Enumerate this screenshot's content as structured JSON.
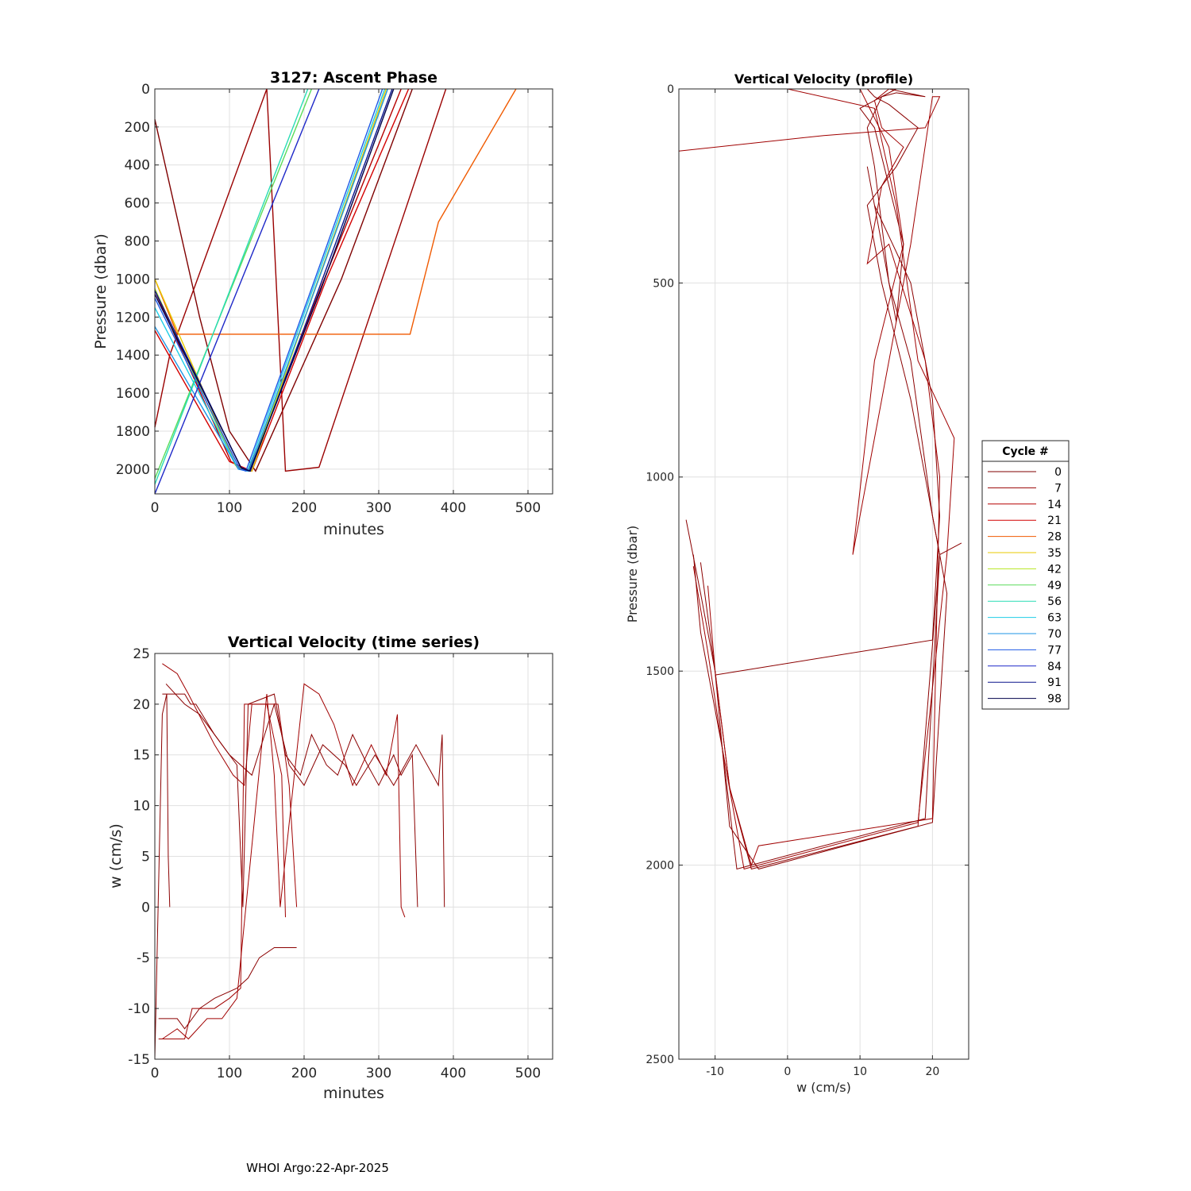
{
  "footer": "WHOI Argo:22-Apr-2025",
  "series_colors": [
    "#7f0000",
    "#9a0000",
    "#b50000",
    "#d30000",
    "#f05a00",
    "#e8c800",
    "#b4e61e",
    "#5adc5a",
    "#28dcb4",
    "#1ecde6",
    "#1e96e6",
    "#1e5ae6",
    "#1e28c8",
    "#0a148c",
    "#00004a"
  ],
  "chart_data": [
    {
      "type": "line",
      "title": "3127: Ascent Phase",
      "xlabel": "minutes",
      "ylabel": "Pressure (dbar)",
      "xlim": [
        0,
        533
      ],
      "ylim": [
        2130,
        0
      ],
      "y_reversed": true,
      "xticks": [
        0,
        100,
        200,
        300,
        400,
        500
      ],
      "yticks": [
        0,
        200,
        400,
        600,
        800,
        1000,
        1200,
        1400,
        1600,
        1800,
        2000
      ],
      "grid": true,
      "series": [
        {
          "cycle": 0,
          "x": [
            0,
            60,
            100,
            125,
            135,
            250,
            345
          ],
          "y": [
            160,
            1200,
            1800,
            1950,
            2010,
            1000,
            0
          ]
        },
        {
          "cycle": 7,
          "x": [
            0,
            20,
            150,
            175,
            220,
            390
          ],
          "y": [
            1780,
            1400,
            0,
            2010,
            1990,
            0
          ]
        },
        {
          "cycle": 14,
          "x": [
            0,
            102,
            125,
            225,
            330
          ],
          "y": [
            1060,
            1960,
            2010,
            1020,
            0
          ]
        },
        {
          "cycle": 21,
          "x": [
            0,
            100,
            130,
            230,
            340
          ],
          "y": [
            1270,
            1960,
            2010,
            1000,
            0
          ]
        },
        {
          "cycle": 28,
          "x": [
            0,
            30,
            342,
            380,
            484
          ],
          "y": [
            1000,
            1290,
            1290,
            700,
            0
          ]
        },
        {
          "cycle": 35,
          "x": [
            0,
            110,
            130,
            210,
            310
          ],
          "y": [
            1000,
            1990,
            2010,
            1100,
            0
          ]
        },
        {
          "cycle": 42,
          "x": [
            0,
            108,
            128,
            215,
            312
          ],
          "y": [
            1050,
            1980,
            2010,
            1050,
            0
          ]
        },
        {
          "cycle": 49,
          "x": [
            0,
            210
          ],
          "y": [
            2050,
            0
          ]
        },
        {
          "cycle": 56,
          "x": [
            0,
            205
          ],
          "y": [
            2080,
            0
          ]
        },
        {
          "cycle": 63,
          "x": [
            0,
            112,
            124,
            212,
            308
          ],
          "y": [
            1150,
            2000,
            2010,
            1050,
            0
          ]
        },
        {
          "cycle": 70,
          "x": [
            0,
            112,
            126,
            215,
            312
          ],
          "y": [
            1250,
            2000,
            2010,
            1050,
            0
          ]
        },
        {
          "cycle": 77,
          "x": [
            0,
            114,
            122,
            210,
            305
          ],
          "y": [
            1100,
            2000,
            2010,
            1050,
            0
          ]
        },
        {
          "cycle": 84,
          "x": [
            0,
            220
          ],
          "y": [
            2130,
            0
          ]
        },
        {
          "cycle": 91,
          "x": [
            0,
            115,
            128,
            220,
            318
          ],
          "y": [
            1060,
            1990,
            2010,
            1050,
            0
          ]
        },
        {
          "cycle": 98,
          "x": [
            0,
            116,
            127,
            222,
            320
          ],
          "y": [
            1080,
            1995,
            2010,
            1060,
            0
          ]
        }
      ]
    },
    {
      "type": "line",
      "title": "Vertical Velocity (time series)",
      "xlabel": "minutes",
      "ylabel": "w (cm/s)",
      "xlim": [
        0,
        533
      ],
      "ylim": [
        -15,
        25
      ],
      "xticks": [
        0,
        100,
        200,
        300,
        400,
        500
      ],
      "yticks": [
        -15,
        -10,
        -5,
        0,
        5,
        10,
        15,
        20,
        25
      ],
      "grid": true,
      "series": [
        {
          "x": [
            0,
            10,
            16,
            18,
            20
          ],
          "y": [
            -15,
            19,
            21,
            5,
            0
          ]
        },
        {
          "x": [
            10,
            30,
            45,
            80,
            105,
            120,
            130,
            165,
            180,
            190
          ],
          "y": [
            24,
            23,
            21,
            16,
            13,
            12,
            20,
            20,
            12,
            0
          ]
        },
        {
          "x": [
            10,
            40,
            48,
            55,
            80,
            110,
            118,
            125,
            160,
            175,
            195,
            210,
            230,
            245,
            265,
            285,
            300,
            320,
            330,
            345,
            352
          ],
          "y": [
            21,
            21,
            20,
            20,
            17,
            14,
            0,
            20,
            21,
            15,
            13,
            17,
            14,
            13,
            17,
            14,
            12,
            15,
            13,
            15,
            0
          ]
        },
        {
          "x": [
            5,
            40,
            50,
            80,
            100,
            115,
            120,
            150,
            170,
            175
          ],
          "y": [
            -13,
            -13,
            -10,
            -10,
            -9,
            -8,
            20,
            20,
            13,
            -1
          ]
        },
        {
          "x": [
            5,
            30,
            40,
            60,
            80,
            110,
            125,
            140,
            160,
            175,
            190
          ],
          "y": [
            -11,
            -11,
            -12,
            -10,
            -9,
            -8,
            -7,
            -5,
            -4,
            -4,
            -4
          ]
        },
        {
          "x": [
            10,
            30,
            45,
            70,
            90,
            110,
            150,
            160,
            168,
            200,
            220,
            240,
            265,
            290,
            310,
            325,
            330,
            335
          ],
          "y": [
            -13,
            -12,
            -13,
            -11,
            -11,
            -9,
            21,
            13,
            0,
            22,
            21,
            18,
            12,
            16,
            13,
            19,
            0,
            -1
          ]
        },
        {
          "x": [
            15,
            40,
            60,
            80,
            100,
            130,
            160,
            180,
            200,
            225,
            255,
            270,
            295,
            320,
            350,
            380,
            385,
            388
          ],
          "y": [
            22,
            20,
            19,
            17,
            15,
            13,
            20,
            14,
            12,
            16,
            14,
            12,
            15,
            12,
            16,
            12,
            17,
            0
          ]
        }
      ]
    },
    {
      "type": "line",
      "title": "Vertical Velocity (profile)",
      "xlabel": "w (cm/s)",
      "ylabel": "Pressure (dbar)",
      "xlim": [
        -15,
        25
      ],
      "ylim": [
        2500,
        0
      ],
      "y_reversed": true,
      "xticks": [
        -10,
        0,
        10,
        20
      ],
      "yticks": [
        0,
        500,
        1000,
        1500,
        2000,
        2500
      ],
      "grid": true,
      "legend": {
        "title": "Cycle #",
        "placement": "right",
        "entries": [
          "0",
          "7",
          "14",
          "21",
          "28",
          "35",
          "42",
          "49",
          "56",
          "63",
          "70",
          "77",
          "84",
          "91",
          "98"
        ]
      },
      "series": [
        {
          "x": [
            -14,
            -12,
            -10,
            -8,
            -5,
            18,
            21,
            24
          ],
          "y": [
            1110,
            1300,
            1500,
            1800,
            2010,
            1900,
            1200,
            1170
          ]
        },
        {
          "x": [
            -13,
            -11,
            -9,
            -6,
            18,
            22,
            23,
            18,
            15,
            12,
            0
          ],
          "y": [
            1230,
            1450,
            1700,
            2010,
            1890,
            1200,
            900,
            700,
            300,
            50,
            0
          ]
        },
        {
          "x": [
            -12,
            -10,
            -8,
            -4,
            20,
            22,
            20,
            17,
            14,
            12,
            11,
            13,
            15,
            19,
            14
          ],
          "y": [
            1220,
            1500,
            1900,
            2010,
            1890,
            1300,
            1100,
            700,
            500,
            200,
            100,
            20,
            10,
            20,
            0
          ]
        },
        {
          "x": [
            -15,
            5,
            19,
            21,
            20,
            17,
            12,
            9,
            12,
            16,
            14,
            10
          ],
          "y": [
            160,
            120,
            100,
            20,
            20,
            400,
            900,
            1200,
            700,
            400,
            150,
            0
          ]
        },
        {
          "x": [
            -10,
            20,
            21,
            20,
            17,
            12,
            11,
            15,
            16,
            12,
            10,
            15
          ],
          "y": [
            1510,
            1420,
            1100,
            800,
            500,
            300,
            200,
            600,
            400,
            100,
            50,
            0
          ]
        },
        {
          "x": [
            -11,
            -10,
            -8,
            -5,
            -4,
            20,
            21,
            19,
            14,
            11,
            13,
            16,
            13,
            12,
            14
          ],
          "y": [
            1280,
            1500,
            1800,
            2000,
            1950,
            1880,
            1000,
            700,
            400,
            450,
            250,
            150,
            100,
            30,
            0
          ]
        },
        {
          "x": [
            -13,
            -12,
            -9,
            -7,
            19,
            21,
            19,
            17,
            13,
            11,
            15,
            18,
            14,
            12,
            11
          ],
          "y": [
            1200,
            1400,
            1700,
            2010,
            1880,
            1200,
            1000,
            800,
            500,
            300,
            200,
            100,
            40,
            20,
            0
          ]
        }
      ]
    }
  ]
}
